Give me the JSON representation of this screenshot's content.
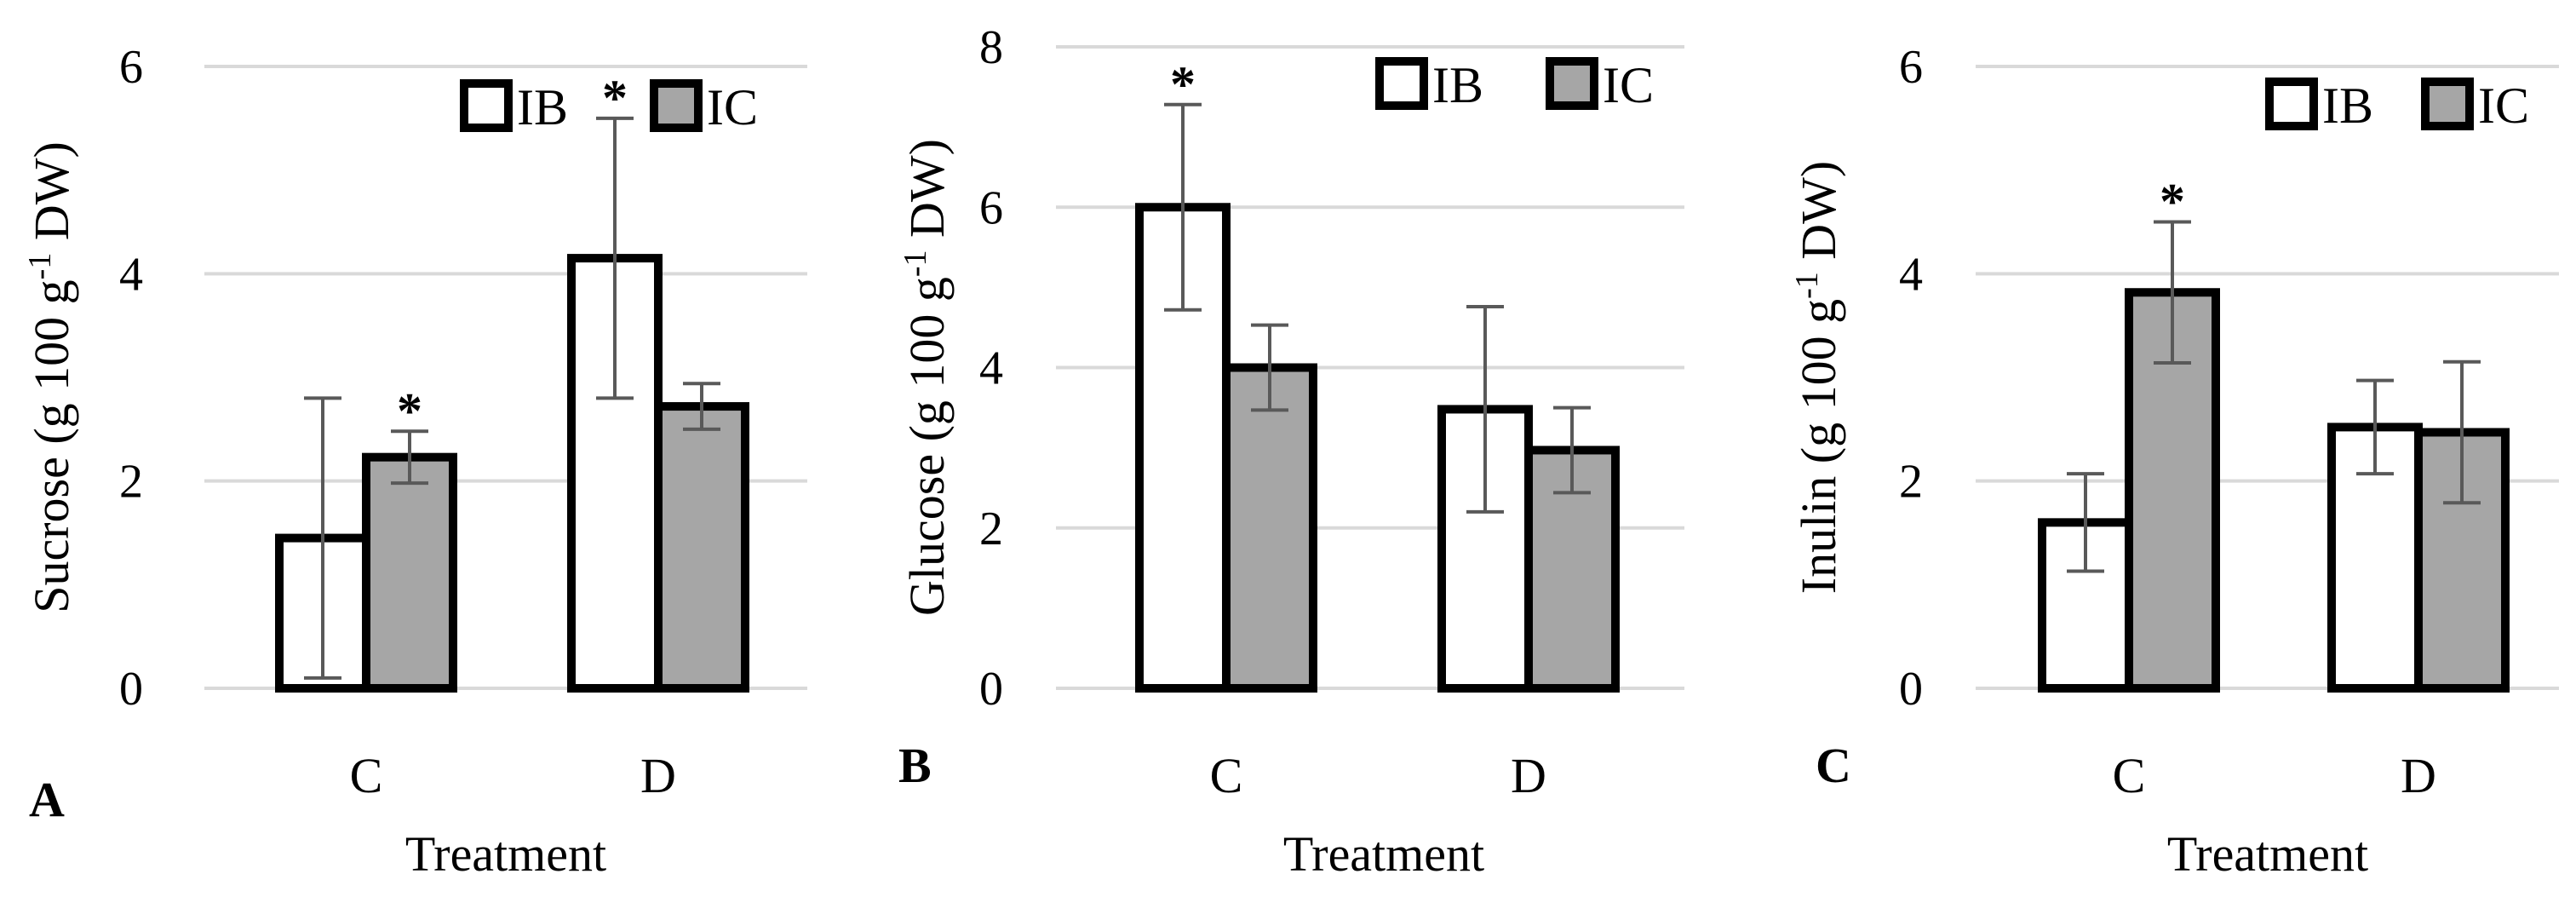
{
  "legend_labels": [
    "IB",
    "IC"
  ],
  "colors": {
    "IB": "#ffffff",
    "IC": "#a6a6a6",
    "outline": "#000000",
    "error_bar": "#595959",
    "grid": "#d9d9d9"
  },
  "chart_data": [
    {
      "type": "bar",
      "panel": "A",
      "categories": [
        "C",
        "D"
      ],
      "xlabel": "Treatment",
      "ylabel": "Sucrose (g 100 g-1 DW)",
      "ylabel_parts": {
        "before": "Sucrose (g 100 g",
        "sup": "-1",
        "after": " DW)"
      },
      "ylim": [
        0,
        6
      ],
      "yticks": [
        0,
        2,
        4,
        6
      ],
      "series": [
        {
          "name": "IB",
          "values": [
            1.45,
            4.15
          ],
          "errors": [
            1.35,
            1.35
          ],
          "significant": [
            false,
            true
          ]
        },
        {
          "name": "IC",
          "values": [
            2.23,
            2.72
          ],
          "errors": [
            0.25,
            0.22
          ],
          "significant": [
            true,
            false
          ]
        }
      ],
      "significance_mark": "*"
    },
    {
      "type": "bar",
      "panel": "B",
      "categories": [
        "C",
        "D"
      ],
      "xlabel": "Treatment",
      "ylabel": "Glucose (g 100 g-1 DW)",
      "ylabel_parts": {
        "before": "Glucose (g 100 g",
        "sup": "-1",
        "after": " DW)"
      },
      "ylim": [
        0,
        8
      ],
      "yticks": [
        0,
        2,
        4,
        6,
        8
      ],
      "series": [
        {
          "name": "IB",
          "values": [
            6.0,
            3.48
          ],
          "errors": [
            1.28,
            1.28
          ],
          "significant": [
            true,
            false
          ]
        },
        {
          "name": "IC",
          "values": [
            4.0,
            2.97
          ],
          "errors": [
            0.53,
            0.53
          ],
          "significant": [
            false,
            false
          ]
        }
      ],
      "significance_mark": "*"
    },
    {
      "type": "bar",
      "panel": "C",
      "categories": [
        "C",
        "D"
      ],
      "xlabel": "Treatment",
      "ylabel": "Inulin (g 100 g-1 DW)",
      "ylabel_parts": {
        "before": "Inulin (g 100 g",
        "sup": "-1",
        "after": " DW)"
      },
      "ylim": [
        0,
        6
      ],
      "yticks": [
        0,
        2,
        4,
        6
      ],
      "series": [
        {
          "name": "IB",
          "values": [
            1.6,
            2.52
          ],
          "errors": [
            0.47,
            0.45
          ],
          "significant": [
            false,
            false
          ]
        },
        {
          "name": "IC",
          "values": [
            3.82,
            2.47
          ],
          "errors": [
            0.68,
            0.68
          ],
          "significant": [
            true,
            false
          ]
        }
      ],
      "significance_mark": "*"
    }
  ]
}
